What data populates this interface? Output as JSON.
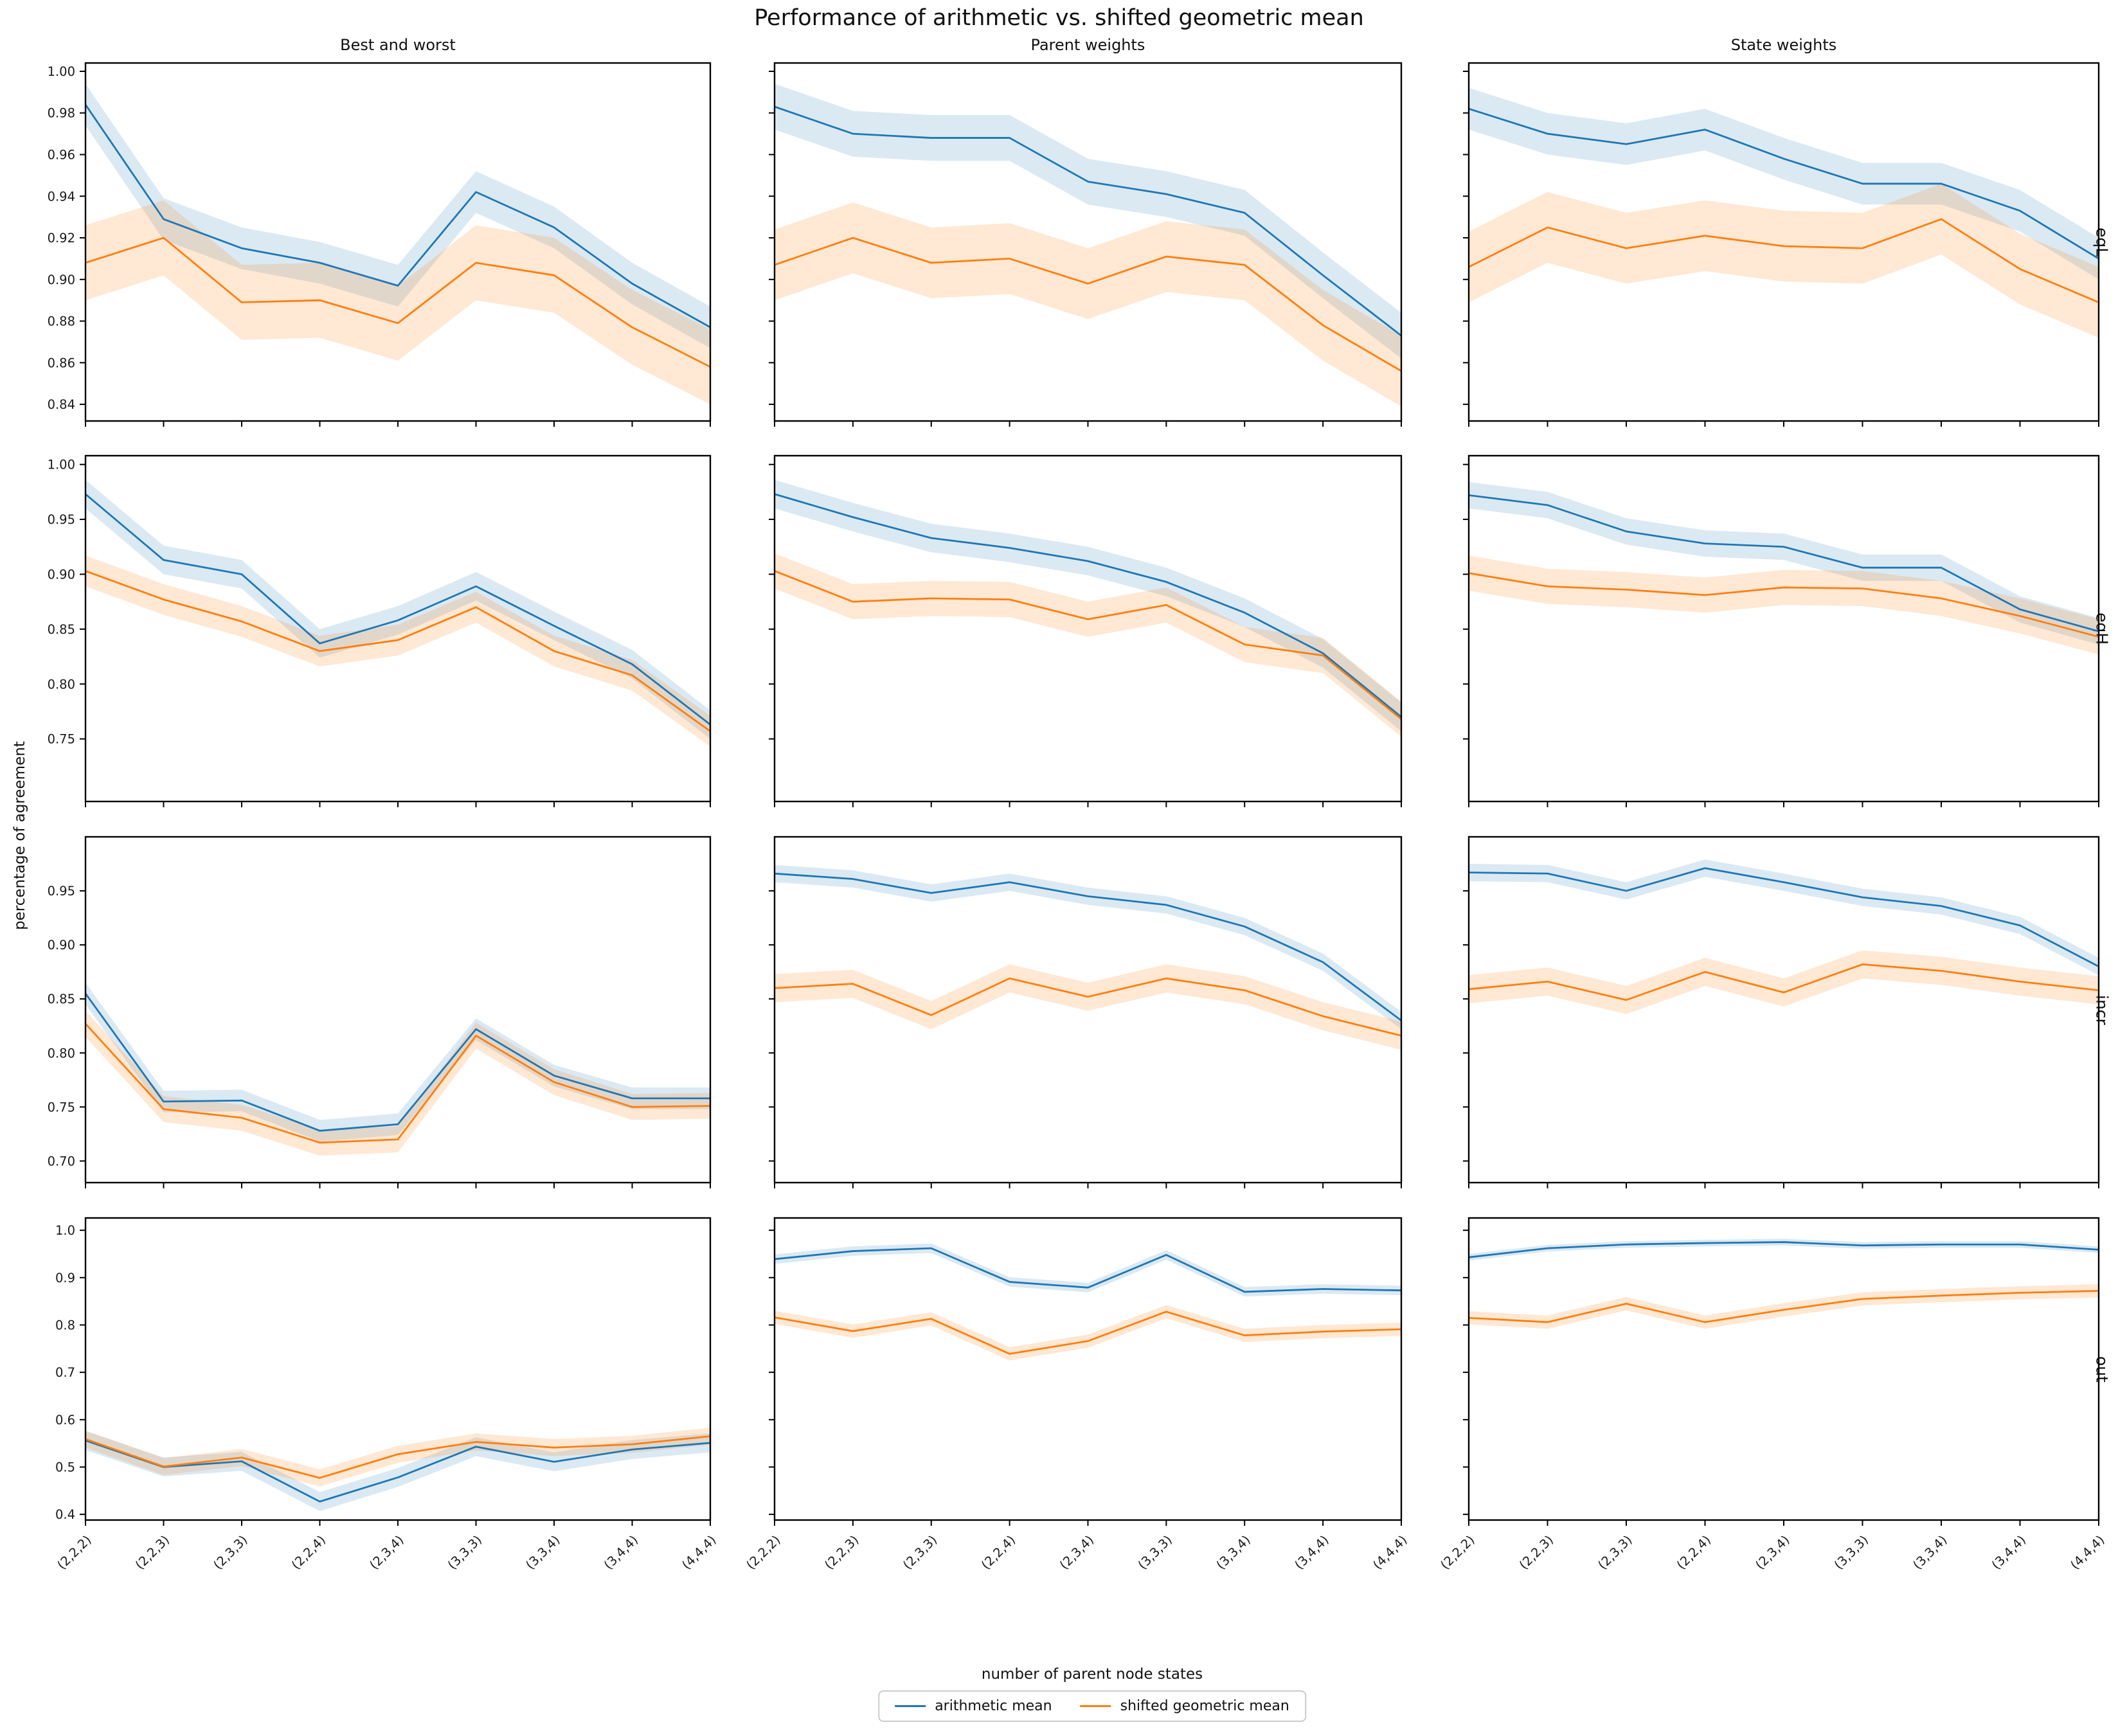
{
  "title": "Performance of arithmetic vs. shifted geometric mean",
  "ylabel": "percentage of agreement",
  "xlabel": "number of parent node states",
  "legend": {
    "position": "lower center outside"
  },
  "chart_data": {
    "type": "line",
    "grid": "off",
    "categories": [
      "(2,2,2)",
      "(2,2,3)",
      "(2,3,3)",
      "(2,2,4)",
      "(2,3,4)",
      "(3,3,3)",
      "(3,3,4)",
      "(3,4,4)",
      "(4,4,4)"
    ],
    "col_titles": [
      "Best and worst",
      "Parent weights",
      "State weights"
    ],
    "row_labels": [
      "eqL",
      "eqH",
      "incr",
      "out"
    ],
    "series": [
      {
        "name": "arithmetic mean",
        "color": "#1f77b4"
      },
      {
        "name": "shifted geometric mean",
        "color": "#ff7f0e"
      }
    ],
    "band_note": "shaded regions are confidence bands of +/- band value around each line",
    "rows": [
      {
        "label": "eqL",
        "ylim": [
          0.832,
          1.004
        ],
        "yticks": [
          0.84,
          0.86,
          0.88,
          0.9,
          0.92,
          0.94,
          0.96,
          0.98,
          1.0
        ],
        "ytick_decimals": 2,
        "panels": [
          {
            "col": "Best and worst",
            "arithmetic": [
              0.984,
              0.929,
              0.915,
              0.908,
              0.897,
              0.942,
              0.925,
              0.898,
              0.877
            ],
            "geometric": [
              0.908,
              0.92,
              0.889,
              0.89,
              0.879,
              0.908,
              0.902,
              0.877,
              0.858
            ],
            "band_arithmetic": 0.01,
            "band_geometric": 0.018
          },
          {
            "col": "Parent weights",
            "arithmetic": [
              0.983,
              0.97,
              0.968,
              0.968,
              0.947,
              0.941,
              0.932,
              0.902,
              0.873
            ],
            "geometric": [
              0.907,
              0.92,
              0.908,
              0.91,
              0.898,
              0.911,
              0.907,
              0.878,
              0.856
            ],
            "band_arithmetic": 0.011,
            "band_geometric": 0.017
          },
          {
            "col": "State weights",
            "arithmetic": [
              0.982,
              0.97,
              0.965,
              0.972,
              0.958,
              0.946,
              0.946,
              0.933,
              0.91
            ],
            "geometric": [
              0.906,
              0.925,
              0.915,
              0.921,
              0.916,
              0.915,
              0.929,
              0.905,
              0.889
            ],
            "band_arithmetic": 0.01,
            "band_geometric": 0.017
          }
        ]
      },
      {
        "label": "eqH",
        "ylim": [
          0.693,
          1.008
        ],
        "yticks": [
          0.75,
          0.8,
          0.85,
          0.9,
          0.95,
          1.0
        ],
        "ytick_decimals": 2,
        "panels": [
          {
            "col": "Best and worst",
            "arithmetic": [
              0.973,
              0.913,
              0.9,
              0.837,
              0.858,
              0.889,
              0.853,
              0.818,
              0.763
            ],
            "geometric": [
              0.903,
              0.877,
              0.857,
              0.83,
              0.84,
              0.87,
              0.83,
              0.808,
              0.757
            ],
            "band_arithmetic": 0.013,
            "band_geometric": 0.014
          },
          {
            "col": "Parent weights",
            "arithmetic": [
              0.973,
              0.952,
              0.933,
              0.924,
              0.912,
              0.893,
              0.865,
              0.828,
              0.77
            ],
            "geometric": [
              0.903,
              0.875,
              0.878,
              0.877,
              0.859,
              0.872,
              0.836,
              0.826,
              0.768
            ],
            "band_arithmetic": 0.013,
            "band_geometric": 0.016
          },
          {
            "col": "State weights",
            "arithmetic": [
              0.972,
              0.963,
              0.939,
              0.928,
              0.925,
              0.906,
              0.906,
              0.868,
              0.848
            ],
            "geometric": [
              0.901,
              0.889,
              0.886,
              0.881,
              0.888,
              0.887,
              0.878,
              0.862,
              0.843
            ],
            "band_arithmetic": 0.012,
            "band_geometric": 0.016
          }
        ]
      },
      {
        "label": "incr",
        "ylim": [
          0.68,
          1.0
        ],
        "yticks": [
          0.7,
          0.75,
          0.8,
          0.85,
          0.9,
          0.95
        ],
        "ytick_decimals": 2,
        "panels": [
          {
            "col": "Best and worst",
            "arithmetic": [
              0.855,
              0.755,
              0.756,
              0.728,
              0.734,
              0.822,
              0.779,
              0.758,
              0.758
            ],
            "geometric": [
              0.827,
              0.748,
              0.74,
              0.717,
              0.72,
              0.816,
              0.773,
              0.75,
              0.751
            ],
            "band_arithmetic": 0.01,
            "band_geometric": 0.012
          },
          {
            "col": "Parent weights",
            "arithmetic": [
              0.966,
              0.961,
              0.948,
              0.958,
              0.945,
              0.937,
              0.917,
              0.884,
              0.83
            ],
            "geometric": [
              0.86,
              0.864,
              0.835,
              0.869,
              0.852,
              0.869,
              0.858,
              0.834,
              0.816
            ],
            "band_arithmetic": 0.008,
            "band_geometric": 0.013
          },
          {
            "col": "State weights",
            "arithmetic": [
              0.967,
              0.966,
              0.95,
              0.971,
              0.958,
              0.944,
              0.936,
              0.918,
              0.88
            ],
            "geometric": [
              0.859,
              0.866,
              0.849,
              0.875,
              0.856,
              0.882,
              0.876,
              0.866,
              0.858
            ],
            "band_arithmetic": 0.008,
            "band_geometric": 0.013
          }
        ]
      },
      {
        "label": "out",
        "ylim": [
          0.388,
          1.026
        ],
        "yticks": [
          0.4,
          0.5,
          0.6,
          0.7,
          0.8,
          0.9,
          1.0
        ],
        "ytick_decimals": 1,
        "panels": [
          {
            "col": "Best and worst",
            "arithmetic": [
              0.556,
              0.5,
              0.512,
              0.427,
              0.478,
              0.543,
              0.511,
              0.537,
              0.551
            ],
            "geometric": [
              0.559,
              0.501,
              0.52,
              0.477,
              0.527,
              0.553,
              0.541,
              0.548,
              0.565
            ],
            "band_arithmetic": 0.02,
            "band_geometric": 0.018
          },
          {
            "col": "Parent weights",
            "arithmetic": [
              0.939,
              0.956,
              0.962,
              0.891,
              0.879,
              0.948,
              0.87,
              0.876,
              0.873
            ],
            "geometric": [
              0.816,
              0.787,
              0.813,
              0.739,
              0.766,
              0.828,
              0.778,
              0.786,
              0.791
            ],
            "band_arithmetic": 0.01,
            "band_geometric": 0.014
          },
          {
            "col": "State weights",
            "arithmetic": [
              0.943,
              0.962,
              0.97,
              0.973,
              0.975,
              0.968,
              0.97,
              0.97,
              0.959
            ],
            "geometric": [
              0.815,
              0.806,
              0.845,
              0.806,
              0.832,
              0.855,
              0.862,
              0.868,
              0.872
            ],
            "band_arithmetic": 0.007,
            "band_geometric": 0.014
          }
        ]
      }
    ]
  }
}
